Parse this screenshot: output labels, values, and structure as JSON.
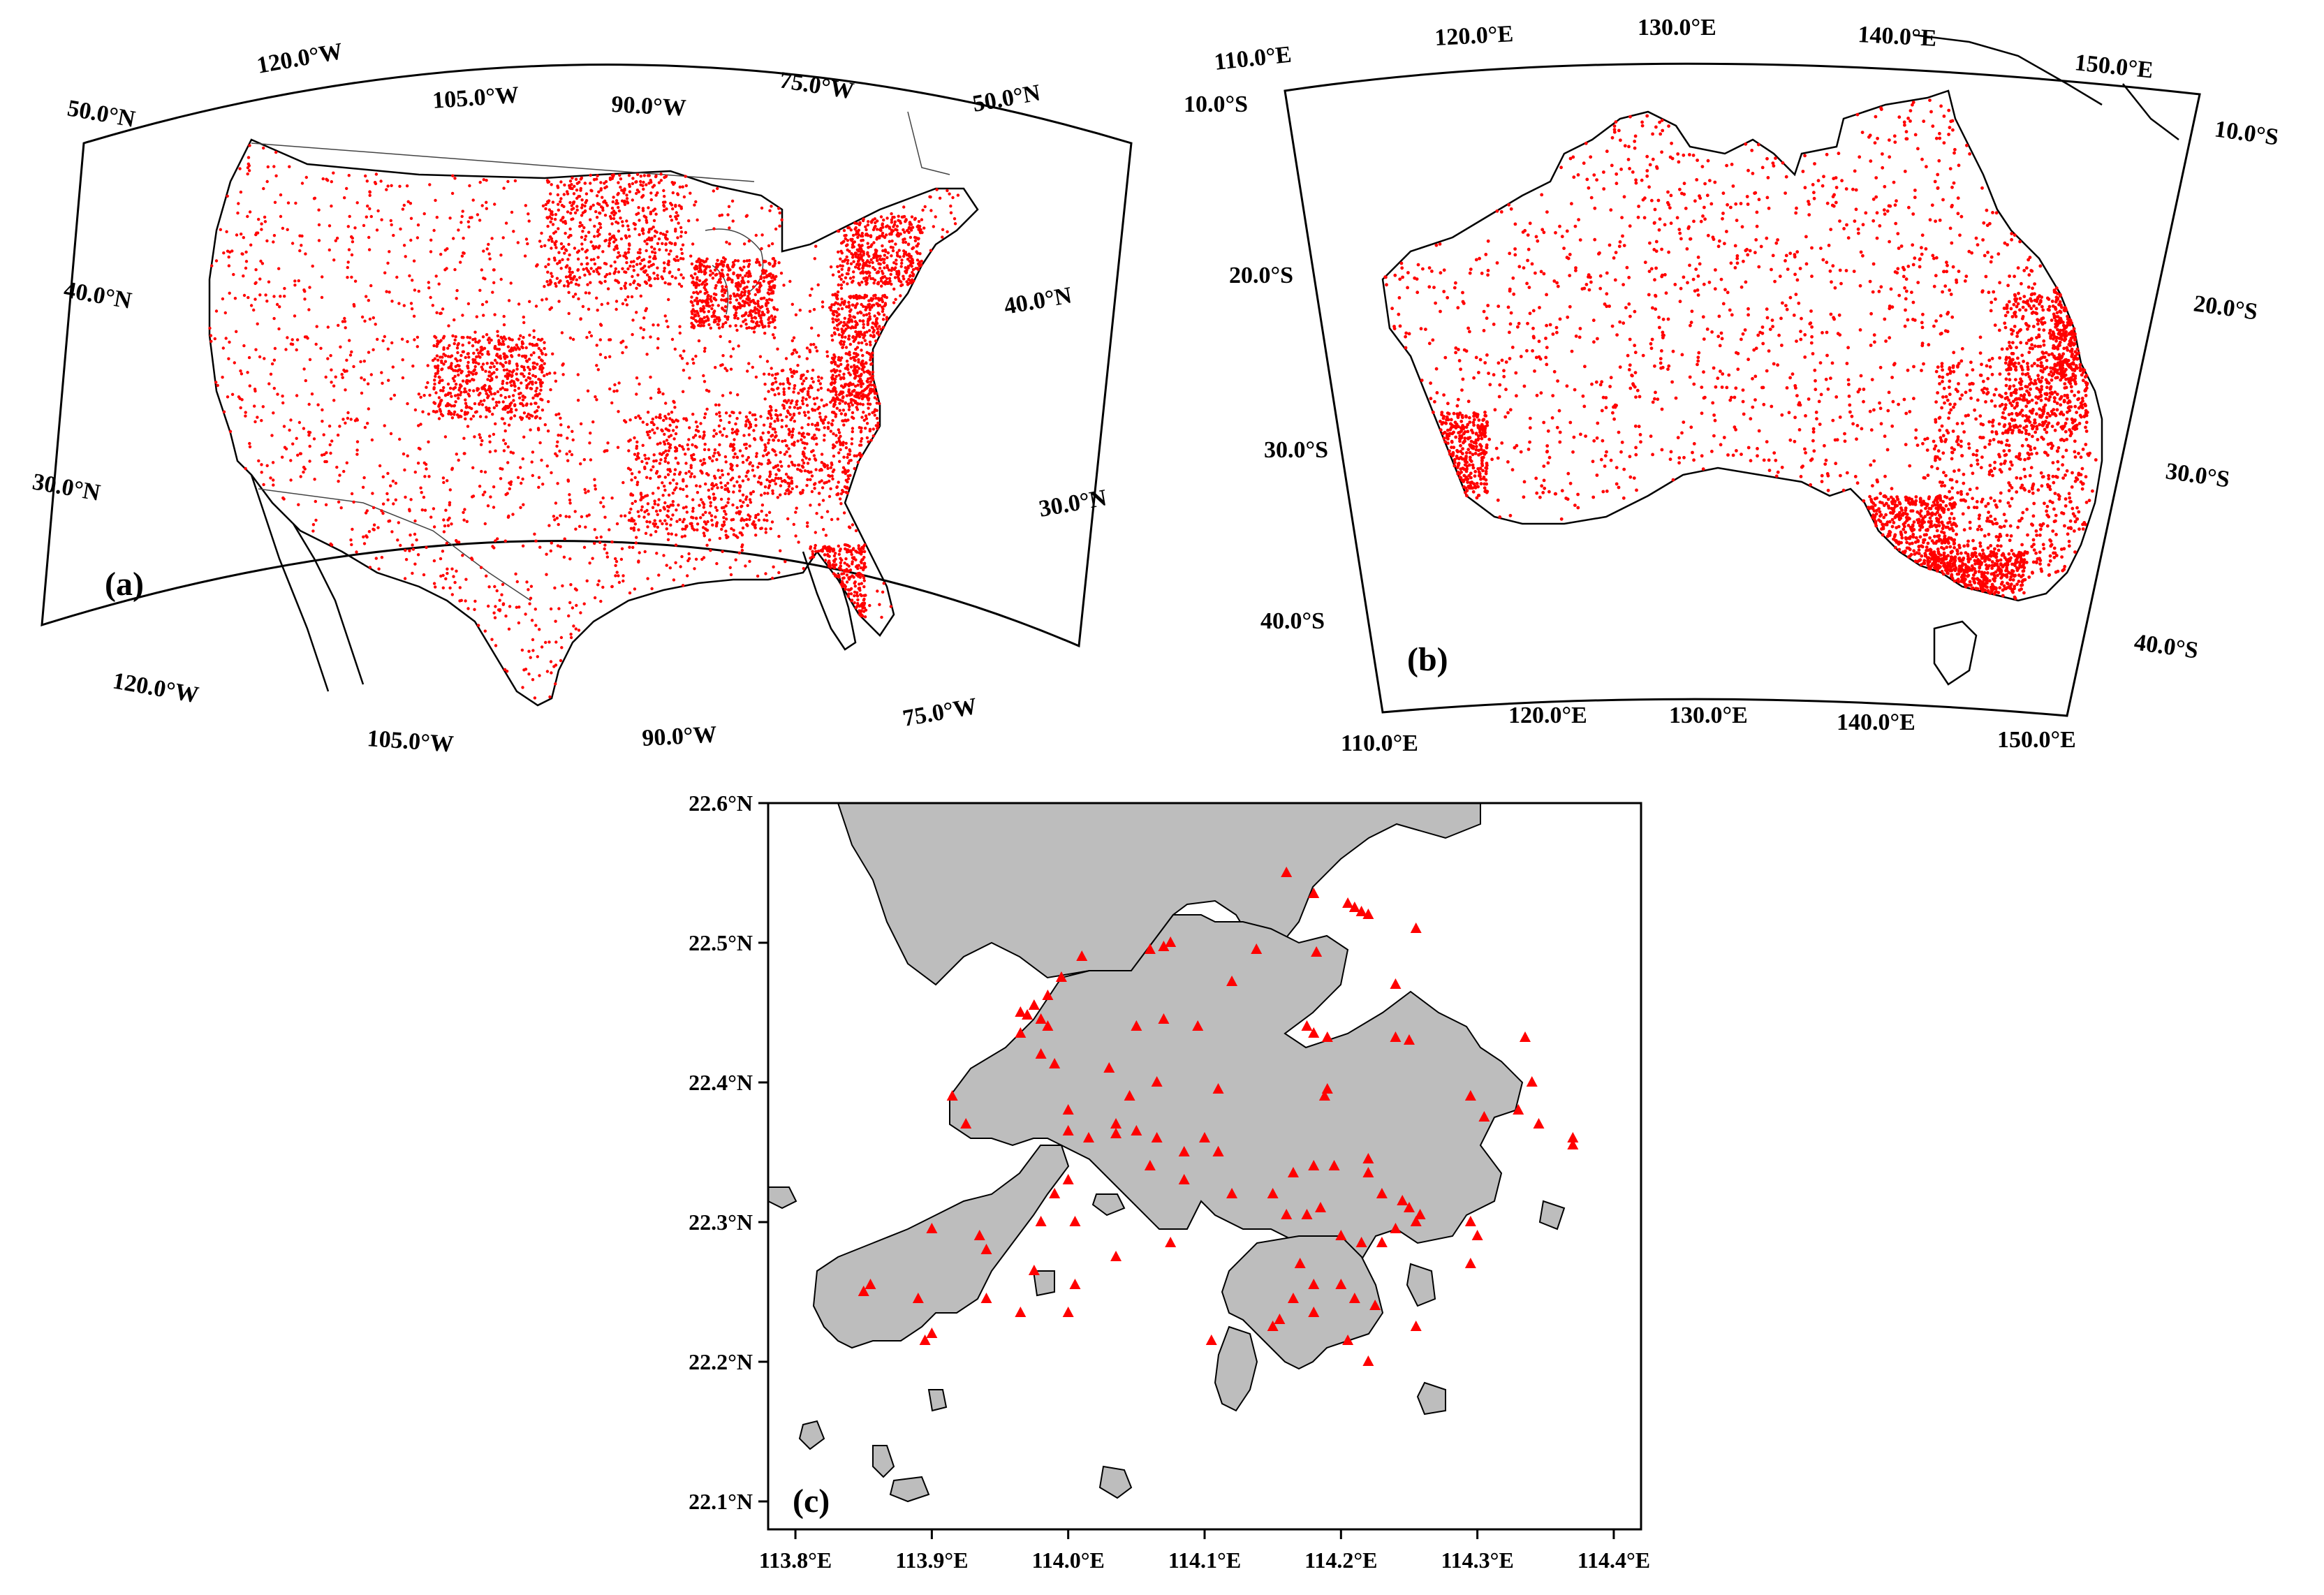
{
  "colors": {
    "station": "#ff0000",
    "land_hk": "#bdbdbd",
    "frame": "#000000"
  },
  "maps": [
    {
      "id": "us",
      "panel_label": "(a)",
      "lon_labels_top": [
        "120.0°W",
        "105.0°W",
        "90.0°W",
        "75.0°W"
      ],
      "lon_labels_bottom": [
        "120.0°W",
        "105.0°W",
        "90.0°W",
        "75.0°W"
      ],
      "lat_labels_left": [
        "50.0°N",
        "40.0°N",
        "30.0°N"
      ],
      "lat_labels_right": [
        "50.0°N",
        "40.0°N",
        "30.0°N"
      ],
      "marker": "dot",
      "station_density": "dense"
    },
    {
      "id": "australia",
      "panel_label": "(b)",
      "lon_labels_top": [
        "110.0°E",
        "120.0°E",
        "130.0°E",
        "140.0°E",
        "150.0°E"
      ],
      "lon_labels_bottom": [
        "110.0°E",
        "120.0°E",
        "130.0°E",
        "140.0°E",
        "150.0°E"
      ],
      "lat_labels_left": [
        "10.0°S",
        "20.0°S",
        "30.0°S",
        "40.0°S"
      ],
      "lat_labels_right": [
        "10.0°S",
        "20.0°S",
        "30.0°S",
        "40.0°S"
      ],
      "marker": "dot",
      "station_density": "dense"
    },
    {
      "id": "hongkong",
      "panel_label": "(c)",
      "x_ticks": [
        "113.8°E",
        "113.9°E",
        "114.0°E",
        "114.1°E",
        "114.2°E",
        "114.3°E",
        "114.4°E"
      ],
      "y_ticks": [
        "22.6°N",
        "22.5°N",
        "22.4°N",
        "22.3°N",
        "22.2°N",
        "22.1°N"
      ],
      "xlim": [
        113.78,
        114.42
      ],
      "ylim": [
        22.08,
        22.6
      ],
      "marker": "triangle",
      "stations": [
        [
          114.16,
          22.55
        ],
        [
          114.18,
          22.535
        ],
        [
          114.205,
          22.528
        ],
        [
          114.21,
          22.525
        ],
        [
          114.215,
          22.522
        ],
        [
          114.22,
          22.52
        ],
        [
          114.255,
          22.51
        ],
        [
          114.138,
          22.495
        ],
        [
          114.182,
          22.493
        ],
        [
          114.075,
          22.5
        ],
        [
          114.07,
          22.497
        ],
        [
          114.06,
          22.495
        ],
        [
          114.01,
          22.49
        ],
        [
          113.995,
          22.475
        ],
        [
          114.24,
          22.47
        ],
        [
          114.12,
          22.472
        ],
        [
          113.985,
          22.462
        ],
        [
          113.975,
          22.455
        ],
        [
          113.965,
          22.45
        ],
        [
          113.97,
          22.448
        ],
        [
          113.98,
          22.445
        ],
        [
          113.985,
          22.44
        ],
        [
          114.05,
          22.44
        ],
        [
          114.07,
          22.445
        ],
        [
          114.095,
          22.44
        ],
        [
          114.175,
          22.44
        ],
        [
          114.18,
          22.435
        ],
        [
          114.19,
          22.432
        ],
        [
          114.24,
          22.432
        ],
        [
          114.25,
          22.43
        ],
        [
          113.965,
          22.435
        ],
        [
          113.98,
          22.42
        ],
        [
          114.03,
          22.41
        ],
        [
          113.99,
          22.413
        ],
        [
          114.335,
          22.432
        ],
        [
          114.34,
          22.4
        ],
        [
          114.19,
          22.395
        ],
        [
          114.188,
          22.39
        ],
        [
          114.11,
          22.395
        ],
        [
          114.065,
          22.4
        ],
        [
          114.045,
          22.39
        ],
        [
          113.915,
          22.39
        ],
        [
          114.0,
          22.38
        ],
        [
          114.035,
          22.37
        ],
        [
          114.05,
          22.365
        ],
        [
          114.065,
          22.36
        ],
        [
          114.1,
          22.36
        ],
        [
          114.11,
          22.35
        ],
        [
          113.925,
          22.37
        ],
        [
          114.0,
          22.365
        ],
        [
          114.015,
          22.36
        ],
        [
          114.035,
          22.363
        ],
        [
          114.085,
          22.35
        ],
        [
          114.11,
          22.35
        ],
        [
          114.295,
          22.39
        ],
        [
          114.305,
          22.375
        ],
        [
          114.33,
          22.38
        ],
        [
          114.345,
          22.37
        ],
        [
          114.37,
          22.36
        ],
        [
          114.37,
          22.355
        ],
        [
          114.22,
          22.345
        ],
        [
          114.195,
          22.34
        ],
        [
          114.18,
          22.34
        ],
        [
          114.165,
          22.335
        ],
        [
          114.22,
          22.335
        ],
        [
          114.23,
          22.32
        ],
        [
          114.245,
          22.315
        ],
        [
          114.25,
          22.31
        ],
        [
          114.258,
          22.305
        ],
        [
          114.255,
          22.3
        ],
        [
          114.24,
          22.295
        ],
        [
          114.295,
          22.3
        ],
        [
          114.3,
          22.29
        ],
        [
          114.295,
          22.27
        ],
        [
          114.185,
          22.31
        ],
        [
          114.175,
          22.305
        ],
        [
          114.16,
          22.305
        ],
        [
          114.15,
          22.32
        ],
        [
          114.12,
          22.32
        ],
        [
          114.085,
          22.33
        ],
        [
          114.06,
          22.34
        ],
        [
          114.0,
          22.33
        ],
        [
          113.99,
          22.32
        ],
        [
          113.98,
          22.3
        ],
        [
          114.005,
          22.3
        ],
        [
          113.935,
          22.29
        ],
        [
          113.94,
          22.28
        ],
        [
          113.9,
          22.295
        ],
        [
          113.855,
          22.255
        ],
        [
          113.85,
          22.25
        ],
        [
          113.89,
          22.245
        ],
        [
          113.9,
          22.22
        ],
        [
          113.895,
          22.215
        ],
        [
          113.94,
          22.245
        ],
        [
          113.965,
          22.235
        ],
        [
          114.0,
          22.235
        ],
        [
          114.005,
          22.255
        ],
        [
          113.975,
          22.265
        ],
        [
          114.035,
          22.275
        ],
        [
          114.075,
          22.285
        ],
        [
          114.2,
          22.29
        ],
        [
          114.215,
          22.285
        ],
        [
          114.23,
          22.285
        ],
        [
          114.17,
          22.27
        ],
        [
          114.18,
          22.255
        ],
        [
          114.2,
          22.255
        ],
        [
          114.21,
          22.245
        ],
        [
          114.225,
          22.24
        ],
        [
          114.165,
          22.245
        ],
        [
          114.18,
          22.235
        ],
        [
          114.155,
          22.23
        ],
        [
          114.105,
          22.215
        ],
        [
          114.205,
          22.215
        ],
        [
          114.22,
          22.2
        ],
        [
          114.255,
          22.225
        ],
        [
          114.15,
          22.225
        ]
      ]
    }
  ]
}
